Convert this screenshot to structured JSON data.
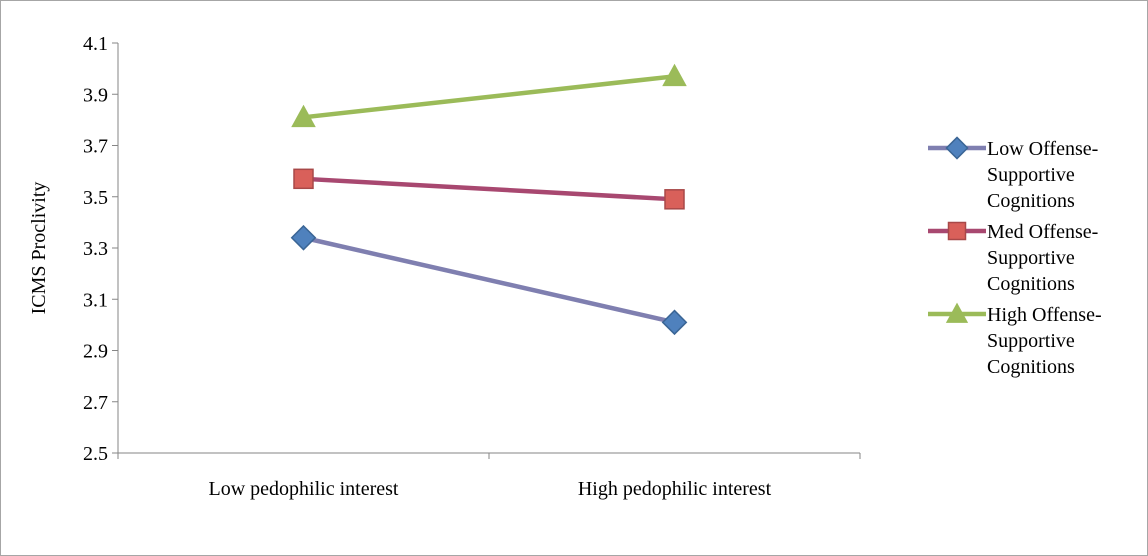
{
  "chart_data": {
    "type": "line",
    "categories": [
      "Low pedophilic interest",
      "High pedophilic interest"
    ],
    "ylabel": "ICMS Proclivity",
    "xlabel": "",
    "ylim": [
      2.5,
      4.1
    ],
    "yticks": [
      2.5,
      2.7,
      2.9,
      3.1,
      3.3,
      3.5,
      3.7,
      3.9,
      4.1
    ],
    "ytick_labels": [
      "2.5",
      "2.7",
      "2.9",
      "3.1",
      "3.3",
      "3.5",
      "3.7",
      "3.9",
      "4.1"
    ],
    "grid": false,
    "legend_position": "right",
    "series": [
      {
        "name": "Low Offense-Supportive Cognitions",
        "legend_lines": [
          "Low Offense-",
          "Supportive",
          "Cognitions"
        ],
        "values": [
          3.34,
          3.01
        ],
        "line_color": "#7f7fb0",
        "marker_color": "#4f81bd",
        "marker_edge": "#3a6595",
        "marker": "diamond"
      },
      {
        "name": "Med Offense-Supportive Cognitions",
        "legend_lines": [
          "Med Offense-",
          "Supportive",
          "Cognitions"
        ],
        "values": [
          3.57,
          3.49
        ],
        "line_color": "#a84870",
        "marker_color": "#d9605a",
        "marker_edge": "#a84848",
        "marker": "square"
      },
      {
        "name": "High Offense-Supportive Cognitions",
        "legend_lines": [
          "High Offense-",
          "Supportive",
          "Cognitions"
        ],
        "values": [
          3.81,
          3.97
        ],
        "line_color": "#9bbb59",
        "marker_color": "#9bbb59",
        "marker_edge": "#9bbb59",
        "marker": "triangle"
      }
    ]
  }
}
